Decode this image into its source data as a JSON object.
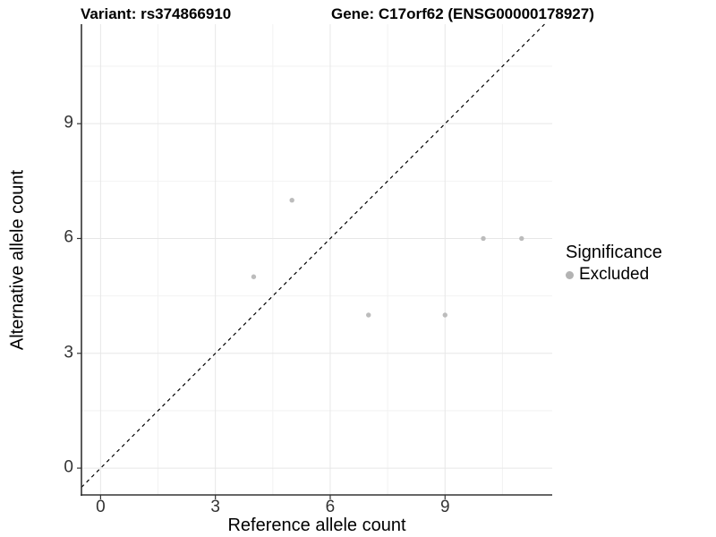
{
  "header": {
    "variant_title": "Variant: rs374866910",
    "gene_title": "Gene: C17orf62 (ENSG00000178927)"
  },
  "axes": {
    "x_label": "Reference allele count",
    "y_label": "Alternative allele count",
    "x_tick_labels": [
      "0",
      "3",
      "6",
      "9"
    ],
    "y_tick_labels": [
      "0",
      "3",
      "6",
      "9"
    ]
  },
  "legend": {
    "title": "Significance",
    "entries": [
      {
        "label": "Excluded",
        "color": "#b3b3b3"
      }
    ]
  },
  "chart_data": {
    "type": "scatter",
    "title": "Variant: rs374866910 | Gene: C17orf62 (ENSG00000178927)",
    "xlabel": "Reference allele count",
    "ylabel": "Alternative allele count",
    "x_ticks": [
      0,
      3,
      6,
      9
    ],
    "y_ticks": [
      0,
      3,
      6,
      9
    ],
    "x_minor_ticks": [
      1.5,
      4.5,
      7.5,
      10.5
    ],
    "y_minor_ticks": [
      1.5,
      4.5,
      7.5,
      10.5
    ],
    "xlim": [
      -0.5,
      11.8
    ],
    "ylim": [
      -0.7,
      11.6
    ],
    "grid": "major and minor, light gray, on white background",
    "legend_position": "right",
    "series": [
      {
        "name": "Excluded",
        "color": "#bcbcbc",
        "points": [
          [
            4,
            5
          ],
          [
            5,
            7
          ],
          [
            7,
            4
          ],
          [
            9,
            4
          ],
          [
            10,
            6
          ],
          [
            11,
            6
          ]
        ]
      }
    ],
    "reference_line": {
      "type": "identity y=x",
      "style": "dashed",
      "color": "#000000"
    }
  },
  "colors": {
    "background": "#ffffff",
    "axis_line": "#333333",
    "tick_text": "#333333",
    "major_grid": "#e7e7e7",
    "minor_grid": "#f2f2f2",
    "point": "#bcbcbc",
    "dashed_line": "#000000"
  }
}
